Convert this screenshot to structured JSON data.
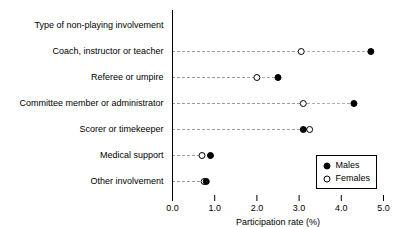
{
  "chart_data": {
    "type": "dot",
    "orientation": "horizontal",
    "categories": [
      "Type of non-playing involvement",
      "Coach, instructor or teacher",
      "Referee or umpire",
      "Committee member or administrator",
      "Scorer or timekeeper",
      "Medical support",
      "Other involvement"
    ],
    "series": [
      {
        "name": "Males",
        "color": "#000000",
        "marker": "circle",
        "values": [
          null,
          4.7,
          2.5,
          4.3,
          3.1,
          0.9,
          0.8
        ]
      },
      {
        "name": "Females",
        "color": "#000000",
        "marker": "open_circle",
        "values": [
          null,
          3.05,
          2.0,
          3.1,
          3.25,
          0.7,
          0.75
        ]
      }
    ],
    "xlabel": "Participation rate (%)",
    "xlim": [
      0,
      5
    ],
    "xticks": [
      0,
      1,
      2,
      3,
      4,
      5
    ],
    "line_style": "dashed",
    "grid": false,
    "legend": "lower right"
  }
}
